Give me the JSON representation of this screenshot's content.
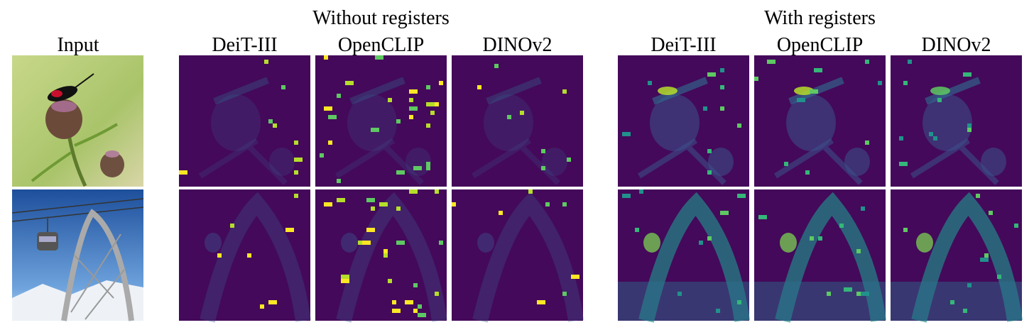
{
  "header": {
    "input_label": "Input",
    "groups": [
      {
        "title": "Without registers",
        "columns": [
          "DeiT-III",
          "OpenCLIP",
          "DINOv2"
        ]
      },
      {
        "title": "With registers",
        "columns": [
          "DeiT-III",
          "OpenCLIP",
          "DINOv2"
        ]
      }
    ]
  }
}
